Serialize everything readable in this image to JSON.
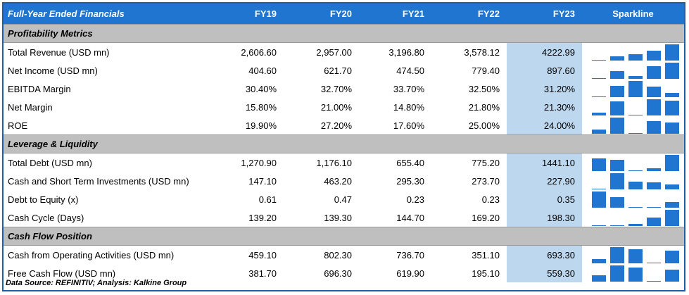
{
  "header": {
    "title": "Full-Year Ended Financials",
    "years": [
      "FY19",
      "FY20",
      "FY21",
      "FY22",
      "FY23"
    ],
    "sparkline_label": "Sparkline"
  },
  "sections": [
    {
      "title": "Profitability Metrics",
      "rows": [
        {
          "label": "Total Revenue (USD mn)",
          "values": [
            "2,606.60",
            "2,957.00",
            "3,196.80",
            "3,578.12",
            "4222.99"
          ],
          "spark": [
            2606.6,
            2957.0,
            3196.8,
            3578.12,
            4222.99
          ]
        },
        {
          "label": "Net Income (USD mn)",
          "values": [
            "404.60",
            "621.70",
            "474.50",
            "779.40",
            "897.60"
          ],
          "spark": [
            404.6,
            621.7,
            474.5,
            779.4,
            897.6
          ]
        },
        {
          "label": "EBITDA Margin",
          "values": [
            "30.40%",
            "32.70%",
            "33.70%",
            "32.50%",
            "31.20%"
          ],
          "spark": [
            30.4,
            32.7,
            33.7,
            32.5,
            31.2
          ]
        },
        {
          "label": "Net Margin",
          "values": [
            "15.80%",
            "21.00%",
            "14.80%",
            "21.80%",
            "21.30%"
          ],
          "spark": [
            15.8,
            21.0,
            14.8,
            21.8,
            21.3
          ]
        },
        {
          "label": "ROE",
          "values": [
            "19.90%",
            "27.20%",
            "17.60%",
            "25.00%",
            "24.00%"
          ],
          "spark": [
            19.9,
            27.2,
            17.6,
            25.0,
            24.0
          ]
        }
      ]
    },
    {
      "title": "Leverage & Liquidity",
      "rows": [
        {
          "label": "Total Debt (USD mn)",
          "values": [
            "1,270.90",
            "1,176.10",
            "655.40",
            "775.20",
            "1441.10"
          ],
          "spark": [
            1270.9,
            1176.1,
            655.4,
            775.2,
            1441.1
          ]
        },
        {
          "label": "Cash and Short Term Investments (USD mn)",
          "values": [
            "147.10",
            "463.20",
            "295.30",
            "273.70",
            "227.90"
          ],
          "spark": [
            147.1,
            463.2,
            295.3,
            273.7,
            227.9
          ]
        },
        {
          "label": "Debt to Equity (x)",
          "values": [
            "0.61",
            "0.47",
            "0.23",
            "0.23",
            "0.35"
          ],
          "spark": [
            0.61,
            0.47,
            0.23,
            0.23,
            0.35
          ]
        },
        {
          "label": "Cash Cycle (Days)",
          "values": [
            "139.20",
            "139.30",
            "144.70",
            "169.20",
            "198.30"
          ],
          "spark": [
            139.2,
            139.3,
            144.7,
            169.2,
            198.3
          ]
        }
      ]
    },
    {
      "title": "Cash Flow Position",
      "rows": [
        {
          "label": "Cash from Operating Activities (USD mn)",
          "values": [
            "459.10",
            "802.30",
            "736.70",
            "351.10",
            "693.30"
          ],
          "spark": [
            459.1,
            802.3,
            736.7,
            351.1,
            693.3
          ]
        },
        {
          "label": "Free Cash Flow (USD mn)",
          "values": [
            "381.70",
            "696.30",
            "619.90",
            "195.10",
            "559.30"
          ],
          "spark": [
            381.7,
            696.3,
            619.9,
            195.1,
            559.3
          ]
        }
      ]
    }
  ],
  "footer": "Data Source: REFINITIV; Analysis: Kalkine Group",
  "colors": {
    "header_bg": "#1f75d0",
    "section_bg": "#bfbfbf",
    "highlight_col": "#bdd7ee",
    "spark_bar": "#1f75d0"
  }
}
